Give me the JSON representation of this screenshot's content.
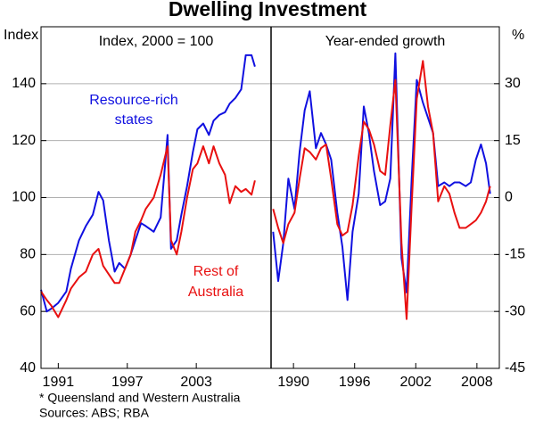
{
  "title": "Dwelling Investment",
  "notes": [
    "*   Queensland and Western Australia",
    "Sources: ABS; RBA"
  ],
  "chart_data": [
    {
      "type": "line",
      "subtitle": "Index, 2000 = 100",
      "ylabel": "Index",
      "xlim": [
        1989.5,
        2009.5
      ],
      "xticks": [
        1991,
        1997,
        2003
      ],
      "ylim": [
        40,
        160
      ],
      "yticks": [
        40,
        60,
        80,
        100,
        120,
        140
      ],
      "grid": true,
      "x": [
        1989.5,
        1990.0,
        1990.4,
        1991.0,
        1991.7,
        1992.1,
        1992.8,
        1993.4,
        1994.0,
        1994.5,
        1994.9,
        1995.4,
        1995.9,
        1996.3,
        1996.8,
        1997.3,
        1997.7,
        1998.2,
        1998.6,
        1999.3,
        1999.9,
        2000.5,
        2000.8,
        2001.3,
        2001.7,
        2002.2,
        2002.7,
        2003.1,
        2003.6,
        2004.1,
        2004.5,
        2005.0,
        2005.5,
        2005.9,
        2006.4,
        2006.9,
        2007.3,
        2007.8,
        2008.1
      ],
      "series": [
        {
          "label": [
            "Resource-rich",
            "states"
          ],
          "color": "#1010e0",
          "values": [
            67.6,
            60,
            61,
            63,
            67,
            75,
            85,
            90,
            94,
            102,
            99,
            85,
            74,
            77,
            75,
            80,
            85,
            91,
            90,
            88,
            93,
            122,
            82,
            85,
            94,
            104,
            116,
            124,
            126,
            122,
            127,
            129,
            130,
            133,
            135,
            138,
            150,
            150,
            146
          ]
        },
        {
          "label": [
            "Rest of",
            "Australia"
          ],
          "color": "#e81010",
          "values": [
            67,
            64,
            62,
            58,
            64,
            68,
            72,
            74,
            80,
            82,
            76,
            73,
            70,
            70,
            75,
            80,
            88,
            92,
            96,
            100,
            108,
            118,
            85,
            80,
            88,
            100,
            110,
            112,
            118,
            112,
            118,
            112,
            108,
            98,
            104,
            102,
            103,
            101,
            106
          ]
        }
      ]
    },
    {
      "type": "line",
      "subtitle": "Year-ended growth",
      "ylabel": "%",
      "xlim": [
        1987.8,
        2010.2
      ],
      "xticks": [
        1990,
        1996,
        2002,
        2008
      ],
      "ylim": [
        -45,
        45
      ],
      "yticks": [
        -45,
        -30,
        -15,
        0,
        15,
        30
      ],
      "grid": true,
      "x": [
        1988.0,
        1988.5,
        1989.0,
        1989.5,
        1990.1,
        1990.6,
        1991.1,
        1991.6,
        1992.2,
        1992.7,
        1993.2,
        1993.7,
        1994.3,
        1994.8,
        1995.3,
        1995.8,
        1996.4,
        1996.9,
        1997.4,
        1997.9,
        1998.5,
        1999.0,
        1999.5,
        2000.0,
        2000.6,
        2001.1,
        2001.6,
        2002.1,
        2002.7,
        2003.2,
        2003.7,
        2004.2,
        2004.8,
        2005.3,
        2005.8,
        2006.3,
        2006.9,
        2007.4,
        2007.9,
        2008.4,
        2008.9,
        2009.3
      ],
      "series": [
        {
          "color": "#1010e0",
          "values": [
            -9,
            -22,
            -12,
            5,
            -3,
            12,
            23,
            28,
            13,
            17,
            14,
            10,
            -4,
            -13,
            -27,
            -9,
            1,
            24,
            17,
            7,
            -2,
            -1,
            5,
            38,
            -16,
            -25,
            5,
            31,
            25,
            21,
            17,
            3,
            4,
            3,
            4,
            4,
            3,
            4,
            10,
            14,
            9,
            1
          ]
        },
        {
          "color": "#e81010",
          "values": [
            -3,
            -8,
            -12,
            -7,
            -4,
            5,
            13,
            12,
            10,
            13,
            14,
            5,
            -7,
            -10,
            -9,
            -2,
            11,
            20,
            18,
            14,
            7,
            6,
            19,
            31,
            -12,
            -32,
            -2,
            26,
            36,
            24,
            17,
            -1,
            3,
            1,
            -4,
            -8,
            -8,
            -7,
            -6,
            -4,
            -1,
            3
          ]
        }
      ]
    }
  ]
}
